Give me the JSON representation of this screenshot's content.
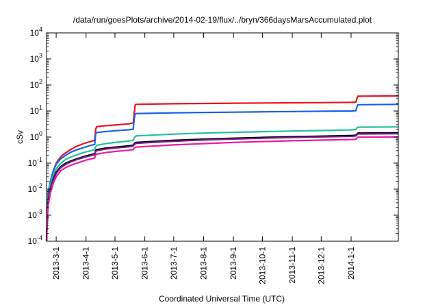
{
  "chart_data": {
    "type": "line",
    "title": "/data/run/goesPlots/archive/2014-02-19/flux/../bryn/366daysMarsAccumulated.plot",
    "xlabel": "Coordinated Universal Time (UTC)",
    "ylabel": "cSv",
    "yscale": "log",
    "xlim": [
      "2013-02-19",
      "2014-02-19"
    ],
    "ylim": [
      0.0001,
      10000
    ],
    "grid": false,
    "legend": "none",
    "x_tick_labels": [
      "2013-3-1",
      "2013-4-1",
      "2013-5-1",
      "2013-6-1",
      "2013-7-1",
      "2013-8-1",
      "2013-9-1",
      "2013-10-1",
      "2013-11-1",
      "2013-12-1",
      "2014-1-1"
    ],
    "y_ticks": [
      {
        "value": 0.0001,
        "base": "10",
        "exp": "-4"
      },
      {
        "value": 0.001,
        "base": "10",
        "exp": "-3"
      },
      {
        "value": 0.01,
        "base": "10",
        "exp": "-2"
      },
      {
        "value": 0.1,
        "base": "10",
        "exp": "-1"
      },
      {
        "value": 1,
        "base": "10",
        "exp": "0"
      },
      {
        "value": 10,
        "base": "10",
        "exp": "1"
      },
      {
        "value": 100,
        "base": "10",
        "exp": "2"
      },
      {
        "value": 1000,
        "base": "10",
        "exp": "3"
      },
      {
        "value": 10000,
        "base": "10",
        "exp": "4"
      }
    ],
    "series": [
      {
        "color": "#e8141a",
        "x": [
          "2013-02-19",
          "2013-02-20",
          "2013-02-21",
          "2013-02-23",
          "2013-02-26",
          "2013-03-01",
          "2013-03-06",
          "2013-03-11",
          "2013-03-16",
          "2013-03-21",
          "2013-03-26",
          "2013-04-01",
          "2013-04-06",
          "2013-04-10",
          "2013-04-11",
          "2013-04-12",
          "2013-04-20",
          "2013-05-01",
          "2013-05-15",
          "2013-05-20",
          "2013-05-21",
          "2013-05-22",
          "2013-05-23",
          "2013-06-01",
          "2013-07-01",
          "2013-08-01",
          "2013-09-01",
          "2013-10-01",
          "2013-11-01",
          "2013-12-01",
          "2014-01-01",
          "2014-01-06",
          "2014-01-07",
          "2014-01-08",
          "2014-02-19"
        ],
        "values": [
          0.0001,
          0.003,
          0.008,
          0.02,
          0.05,
          0.1,
          0.18,
          0.25,
          0.33,
          0.42,
          0.5,
          0.6,
          0.68,
          0.75,
          2.0,
          2.5,
          2.7,
          2.9,
          3.2,
          3.5,
          8.0,
          17.0,
          18.0,
          18.3,
          19.0,
          19.5,
          20.0,
          20.3,
          20.7,
          21.0,
          21.5,
          22.0,
          30.0,
          37.0,
          38.0
        ]
      },
      {
        "color": "#1560e8",
        "x": [
          "2013-02-19",
          "2013-02-20",
          "2013-02-21",
          "2013-02-23",
          "2013-02-26",
          "2013-03-01",
          "2013-03-06",
          "2013-03-11",
          "2013-03-16",
          "2013-03-21",
          "2013-03-26",
          "2013-04-01",
          "2013-04-06",
          "2013-04-10",
          "2013-04-11",
          "2013-04-12",
          "2013-04-20",
          "2013-05-01",
          "2013-05-15",
          "2013-05-20",
          "2013-05-21",
          "2013-05-22",
          "2013-05-23",
          "2013-06-01",
          "2013-07-01",
          "2013-08-01",
          "2013-09-01",
          "2013-10-01",
          "2013-11-01",
          "2013-12-01",
          "2014-01-01",
          "2014-01-06",
          "2014-01-07",
          "2014-01-08",
          "2014-02-19"
        ],
        "values": [
          0.0001,
          0.003,
          0.008,
          0.02,
          0.05,
          0.09,
          0.15,
          0.2,
          0.26,
          0.31,
          0.36,
          0.42,
          0.48,
          0.52,
          1.3,
          1.5,
          1.6,
          1.75,
          1.9,
          2.0,
          5.0,
          7.8,
          8.0,
          8.1,
          8.5,
          8.8,
          9.0,
          9.3,
          9.5,
          9.8,
          10.0,
          10.3,
          14.0,
          17.5,
          18.0
        ]
      },
      {
        "color": "#20c09a",
        "x": [
          "2013-02-19",
          "2013-02-20",
          "2013-02-21",
          "2013-02-23",
          "2013-02-26",
          "2013-03-01",
          "2013-03-06",
          "2013-03-11",
          "2013-03-16",
          "2013-03-21",
          "2013-03-26",
          "2013-04-01",
          "2013-04-06",
          "2013-04-10",
          "2013-04-11",
          "2013-04-12",
          "2013-04-20",
          "2013-05-01",
          "2013-05-15",
          "2013-05-20",
          "2013-05-21",
          "2013-05-22",
          "2013-05-23",
          "2013-06-01",
          "2013-07-01",
          "2013-08-01",
          "2013-09-01",
          "2013-10-01",
          "2013-11-01",
          "2013-12-01",
          "2014-01-01",
          "2014-01-06",
          "2014-01-07",
          "2014-01-08",
          "2014-02-19"
        ],
        "values": [
          0.0001,
          0.002,
          0.006,
          0.015,
          0.035,
          0.06,
          0.1,
          0.14,
          0.17,
          0.2,
          0.23,
          0.27,
          0.3,
          0.33,
          0.42,
          0.48,
          0.55,
          0.62,
          0.7,
          0.75,
          0.9,
          1.05,
          1.1,
          1.15,
          1.3,
          1.42,
          1.52,
          1.6,
          1.7,
          1.78,
          1.88,
          1.95,
          2.2,
          2.4,
          2.45
        ]
      },
      {
        "color": "#000000",
        "x": [
          "2013-02-19",
          "2013-02-20",
          "2013-02-21",
          "2013-02-23",
          "2013-02-26",
          "2013-03-01",
          "2013-03-06",
          "2013-03-11",
          "2013-03-16",
          "2013-03-21",
          "2013-03-26",
          "2013-04-01",
          "2013-04-06",
          "2013-04-10",
          "2013-04-11",
          "2013-04-12",
          "2013-04-20",
          "2013-05-01",
          "2013-05-15",
          "2013-05-20",
          "2013-05-21",
          "2013-05-22",
          "2013-05-23",
          "2013-06-01",
          "2013-07-01",
          "2013-08-01",
          "2013-09-01",
          "2013-10-01",
          "2013-11-01",
          "2013-12-01",
          "2014-01-01",
          "2014-01-06",
          "2014-01-07",
          "2014-01-08",
          "2014-02-19"
        ],
        "values": [
          0.0001,
          0.0015,
          0.004,
          0.01,
          0.025,
          0.045,
          0.075,
          0.1,
          0.12,
          0.14,
          0.16,
          0.19,
          0.21,
          0.23,
          0.3,
          0.33,
          0.37,
          0.41,
          0.46,
          0.49,
          0.56,
          0.6,
          0.62,
          0.65,
          0.75,
          0.83,
          0.9,
          0.97,
          1.03,
          1.08,
          1.14,
          1.18,
          1.3,
          1.42,
          1.45
        ]
      },
      {
        "color": "#7a1c8c",
        "x": [
          "2013-02-19",
          "2013-02-20",
          "2013-02-21",
          "2013-02-23",
          "2013-02-26",
          "2013-03-01",
          "2013-03-06",
          "2013-03-11",
          "2013-03-16",
          "2013-03-21",
          "2013-03-26",
          "2013-04-01",
          "2013-04-06",
          "2013-04-10",
          "2013-04-11",
          "2013-04-12",
          "2013-04-20",
          "2013-05-01",
          "2013-05-15",
          "2013-05-20",
          "2013-05-21",
          "2013-05-22",
          "2013-05-23",
          "2013-06-01",
          "2013-07-01",
          "2013-08-01",
          "2013-09-01",
          "2013-10-01",
          "2013-11-01",
          "2013-12-01",
          "2014-01-01",
          "2014-01-06",
          "2014-01-07",
          "2014-01-08",
          "2014-02-19"
        ],
        "values": [
          0.0001,
          0.0013,
          0.0035,
          0.009,
          0.022,
          0.04,
          0.068,
          0.09,
          0.11,
          0.13,
          0.15,
          0.175,
          0.195,
          0.21,
          0.27,
          0.3,
          0.34,
          0.38,
          0.42,
          0.45,
          0.51,
          0.55,
          0.57,
          0.6,
          0.69,
          0.77,
          0.84,
          0.9,
          0.96,
          1.01,
          1.06,
          1.1,
          1.2,
          1.31,
          1.34
        ]
      },
      {
        "color": "#e81aa8",
        "x": [
          "2013-02-19",
          "2013-02-20",
          "2013-02-21",
          "2013-02-23",
          "2013-02-26",
          "2013-03-01",
          "2013-03-06",
          "2013-03-11",
          "2013-03-16",
          "2013-03-21",
          "2013-03-26",
          "2013-04-01",
          "2013-04-06",
          "2013-04-10",
          "2013-04-11",
          "2013-04-12",
          "2013-04-20",
          "2013-05-01",
          "2013-05-15",
          "2013-05-20",
          "2013-05-21",
          "2013-05-22",
          "2013-05-23",
          "2013-06-01",
          "2013-07-01",
          "2013-08-01",
          "2013-09-01",
          "2013-10-01",
          "2013-11-01",
          "2013-12-01",
          "2014-01-01",
          "2014-01-06",
          "2014-01-07",
          "2014-01-08",
          "2014-02-19"
        ],
        "values": [
          0.0001,
          0.001,
          0.0028,
          0.007,
          0.017,
          0.03,
          0.052,
          0.068,
          0.082,
          0.096,
          0.11,
          0.13,
          0.145,
          0.158,
          0.2,
          0.22,
          0.25,
          0.28,
          0.31,
          0.33,
          0.37,
          0.4,
          0.41,
          0.43,
          0.5,
          0.56,
          0.62,
          0.67,
          0.72,
          0.76,
          0.8,
          0.83,
          0.91,
          0.99,
          1.01
        ]
      }
    ]
  }
}
